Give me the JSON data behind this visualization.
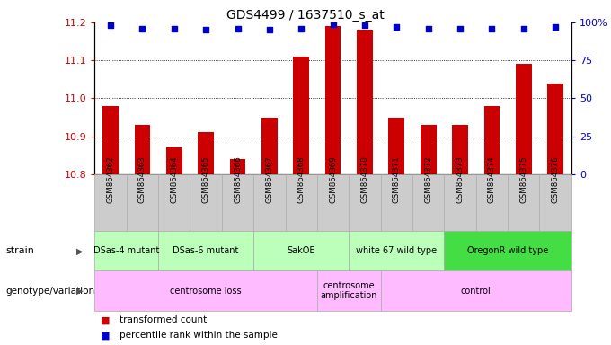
{
  "title": "GDS4499 / 1637510_s_at",
  "samples": [
    "GSM864362",
    "GSM864363",
    "GSM864364",
    "GSM864365",
    "GSM864366",
    "GSM864367",
    "GSM864368",
    "GSM864369",
    "GSM864370",
    "GSM864371",
    "GSM864372",
    "GSM864373",
    "GSM864374",
    "GSM864375",
    "GSM864376"
  ],
  "bar_values": [
    10.98,
    10.93,
    10.87,
    10.91,
    10.84,
    10.95,
    11.11,
    11.19,
    11.18,
    10.95,
    10.93,
    10.93,
    10.98,
    11.09,
    11.04
  ],
  "bar_base": 10.8,
  "percentile_values": [
    98,
    96,
    96,
    95,
    96,
    95,
    96,
    99,
    98,
    97,
    96,
    96,
    96,
    96,
    97
  ],
  "ylim_left": [
    10.8,
    11.2
  ],
  "ylim_right": [
    0,
    100
  ],
  "yticks_left": [
    10.8,
    10.9,
    11.0,
    11.1,
    11.2
  ],
  "yticks_right": [
    0,
    25,
    50,
    75,
    100
  ],
  "bar_color": "#cc0000",
  "dot_color": "#0000cc",
  "bg_color": "#ffffff",
  "plot_bg": "#ffffff",
  "strain_groups": [
    {
      "label": "DSas-4 mutant",
      "start": 0,
      "end": 2,
      "color": "#bbffbb"
    },
    {
      "label": "DSas-6 mutant",
      "start": 2,
      "end": 5,
      "color": "#bbffbb"
    },
    {
      "label": "SakOE",
      "start": 5,
      "end": 8,
      "color": "#bbffbb"
    },
    {
      "label": "white 67 wild type",
      "start": 8,
      "end": 11,
      "color": "#bbffbb"
    },
    {
      "label": "OregonR wild type",
      "start": 11,
      "end": 15,
      "color": "#44dd44"
    }
  ],
  "genotype_groups": [
    {
      "label": "centrosome loss",
      "start": 0,
      "end": 7,
      "color": "#ffbbff"
    },
    {
      "label": "centrosome\namplification",
      "start": 7,
      "end": 9,
      "color": "#ffbbff"
    },
    {
      "label": "control",
      "start": 9,
      "end": 15,
      "color": "#ffbbff"
    }
  ],
  "left_label_color": "#cc0000",
  "right_label_color": "#0000cc",
  "xtick_bg": "#cccccc",
  "strain_border": "#aaaaaa",
  "geno_border": "#aaaaaa"
}
